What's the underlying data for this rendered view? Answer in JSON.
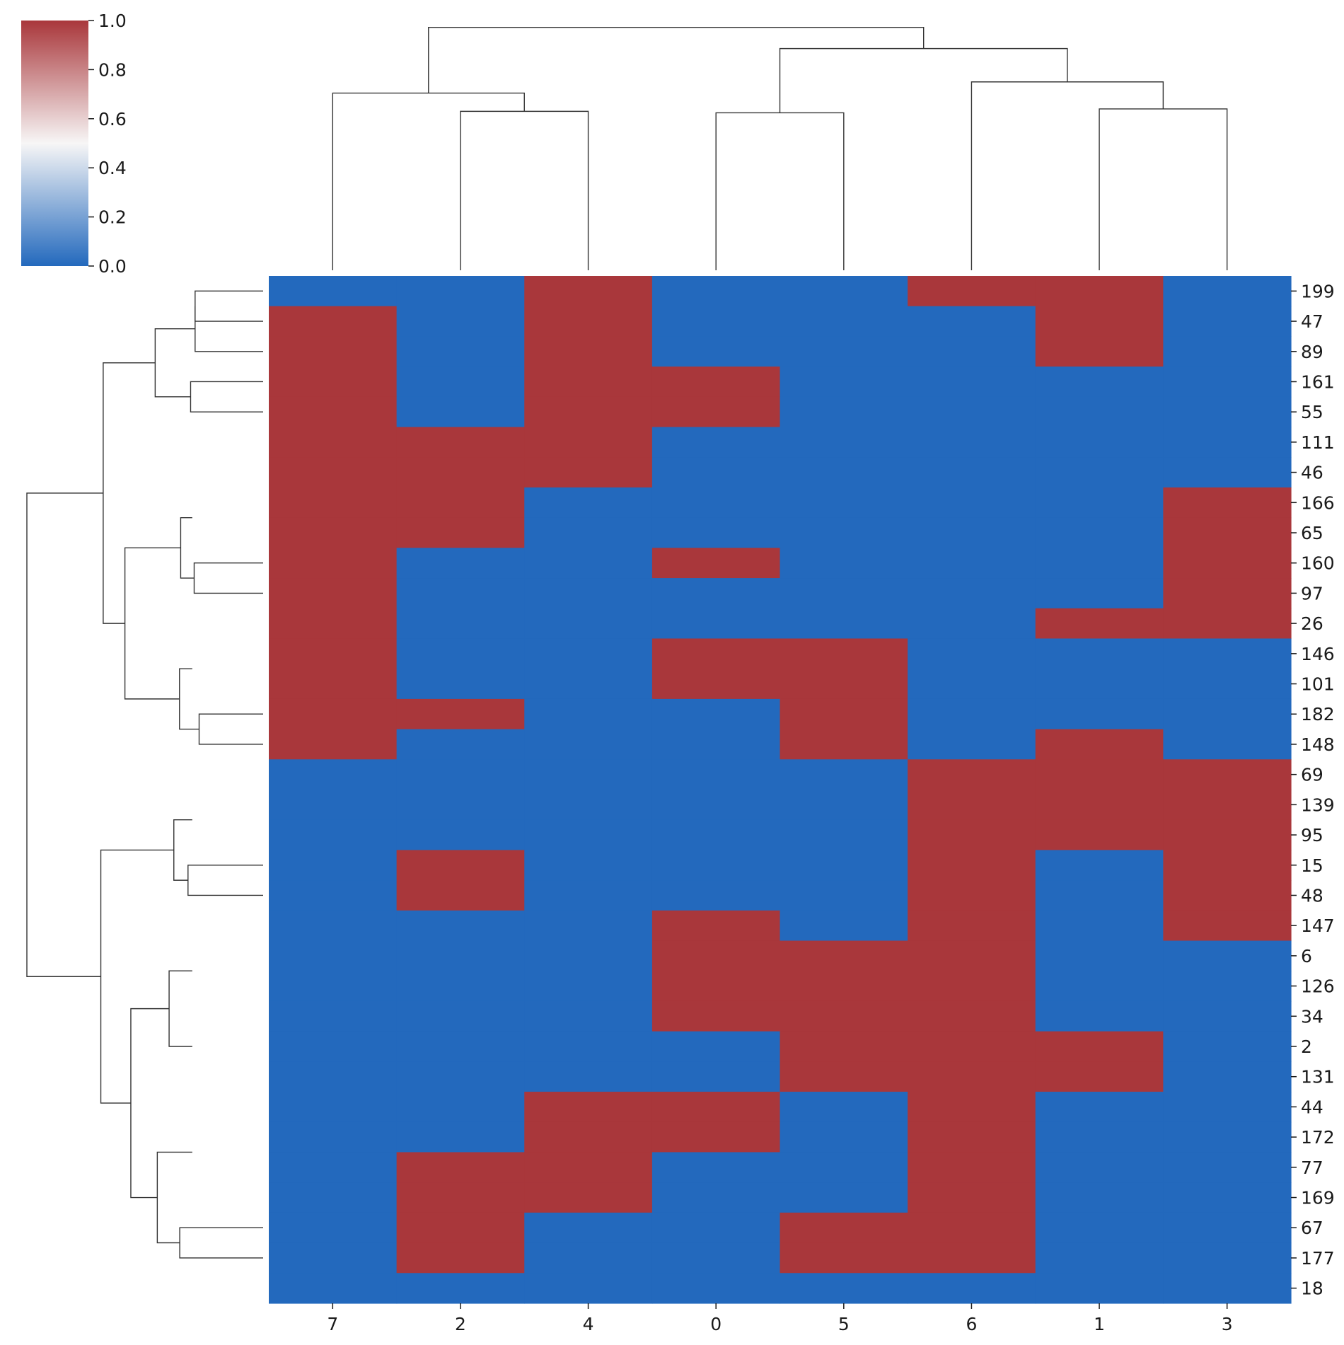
{
  "chart_data": {
    "type": "heatmap",
    "title": "",
    "xlabel": "",
    "ylabel": "",
    "columns": [
      "7",
      "2",
      "4",
      "0",
      "5",
      "6",
      "1",
      "3"
    ],
    "rows": [
      "199",
      "47",
      "89",
      "161",
      "55",
      "111",
      "46",
      "166",
      "65",
      "160",
      "97",
      "26",
      "146",
      "101",
      "182",
      "148",
      "69",
      "139",
      "95",
      "15",
      "48",
      "147",
      "6",
      "126",
      "34",
      "2",
      "131",
      "44",
      "172",
      "77",
      "169",
      "67",
      "177",
      "18"
    ],
    "values": [
      [
        0,
        0,
        1,
        0,
        0,
        1,
        1,
        0
      ],
      [
        1,
        0,
        1,
        0,
        0,
        0,
        1,
        0
      ],
      [
        1,
        0,
        1,
        0,
        0,
        0,
        1,
        0
      ],
      [
        1,
        0,
        1,
        1,
        0,
        0,
        0,
        0
      ],
      [
        1,
        0,
        1,
        1,
        0,
        0,
        0,
        0
      ],
      [
        1,
        1,
        1,
        0,
        0,
        0,
        0,
        0
      ],
      [
        1,
        1,
        1,
        0,
        0,
        0,
        0,
        0
      ],
      [
        1,
        1,
        0,
        0,
        0,
        0,
        0,
        1
      ],
      [
        1,
        1,
        0,
        0,
        0,
        0,
        0,
        1
      ],
      [
        1,
        0,
        0,
        1,
        0,
        0,
        0,
        1
      ],
      [
        1,
        0,
        0,
        0,
        0,
        0,
        0,
        1
      ],
      [
        1,
        0,
        0,
        0,
        0,
        0,
        1,
        1
      ],
      [
        1,
        0,
        0,
        1,
        1,
        0,
        0,
        0
      ],
      [
        1,
        0,
        0,
        1,
        1,
        0,
        0,
        0
      ],
      [
        1,
        1,
        0,
        0,
        1,
        0,
        0,
        0
      ],
      [
        1,
        0,
        0,
        0,
        1,
        0,
        1,
        0
      ],
      [
        0,
        0,
        0,
        0,
        0,
        1,
        1,
        1
      ],
      [
        0,
        0,
        0,
        0,
        0,
        1,
        1,
        1
      ],
      [
        0,
        0,
        0,
        0,
        0,
        1,
        1,
        1
      ],
      [
        0,
        1,
        0,
        0,
        0,
        1,
        0,
        1
      ],
      [
        0,
        1,
        0,
        0,
        0,
        1,
        0,
        1
      ],
      [
        0,
        0,
        0,
        1,
        0,
        1,
        0,
        1
      ],
      [
        0,
        0,
        0,
        1,
        1,
        1,
        0,
        0
      ],
      [
        0,
        0,
        0,
        1,
        1,
        1,
        0,
        0
      ],
      [
        0,
        0,
        0,
        1,
        1,
        1,
        0,
        0
      ],
      [
        0,
        0,
        0,
        0,
        1,
        1,
        1,
        0
      ],
      [
        0,
        0,
        0,
        0,
        1,
        1,
        1,
        0
      ],
      [
        0,
        0,
        1,
        1,
        0,
        1,
        0,
        0
      ],
      [
        0,
        0,
        1,
        1,
        0,
        1,
        0,
        0
      ],
      [
        0,
        1,
        1,
        0,
        0,
        1,
        0,
        0
      ],
      [
        0,
        1,
        1,
        0,
        0,
        1,
        0,
        0
      ],
      [
        0,
        1,
        0,
        0,
        1,
        1,
        0,
        0
      ],
      [
        0,
        1,
        0,
        0,
        1,
        1,
        0,
        0
      ],
      [
        0,
        0,
        0,
        0,
        0,
        0,
        0,
        0
      ]
    ],
    "colorbar": {
      "ticks": [
        "0.0",
        "0.2",
        "0.4",
        "0.6",
        "0.8",
        "1.0"
      ],
      "range": [
        0,
        1
      ],
      "colors": {
        "low": "#2369bd",
        "mid": "#f7f6f6",
        "high": "#a9373b"
      }
    },
    "row_labels_position": "right",
    "col_labels_position": "bottom",
    "col_dendrogram": [
      [
        "c",
        0,
        1,
        0.728
      ],
      [
        "c",
        1,
        2,
        0.653
      ],
      [
        "c",
        3,
        4,
        0.647
      ],
      [
        "c",
        6,
        7,
        0.663
      ],
      [
        "m",
        5,
        3,
        0.774
      ],
      [
        "m",
        2,
        4,
        0.911
      ],
      [
        "m",
        0,
        5,
        0.998
      ]
    ],
    "row_dendrogram": [
      [
        "c",
        0,
        1,
        0.288
      ],
      [
        "c",
        3,
        4,
        0.307
      ],
      [
        "m",
        0,
        1,
        0.457
      ],
      [
        "c",
        9,
        10,
        0.292
      ],
      [
        "m",
        7,
        3,
        0.349
      ],
      [
        "c",
        14,
        15,
        0.271
      ],
      [
        "m",
        12,
        5,
        0.354
      ],
      [
        "m",
        4,
        6,
        0.585
      ],
      [
        "m",
        2,
        7,
        0.677
      ],
      [
        "c",
        19,
        20,
        0.318
      ],
      [
        "m",
        16,
        9,
        0.378
      ],
      [
        "c",
        22,
        24,
        0.398
      ],
      [
        "c",
        31,
        32,
        0.353
      ],
      [
        "m",
        28,
        12,
        0.448
      ],
      [
        "m",
        11,
        13,
        0.56
      ],
      [
        "m",
        10,
        14,
        0.687
      ],
      [
        "m",
        8,
        15,
        1.0
      ]
    ]
  }
}
